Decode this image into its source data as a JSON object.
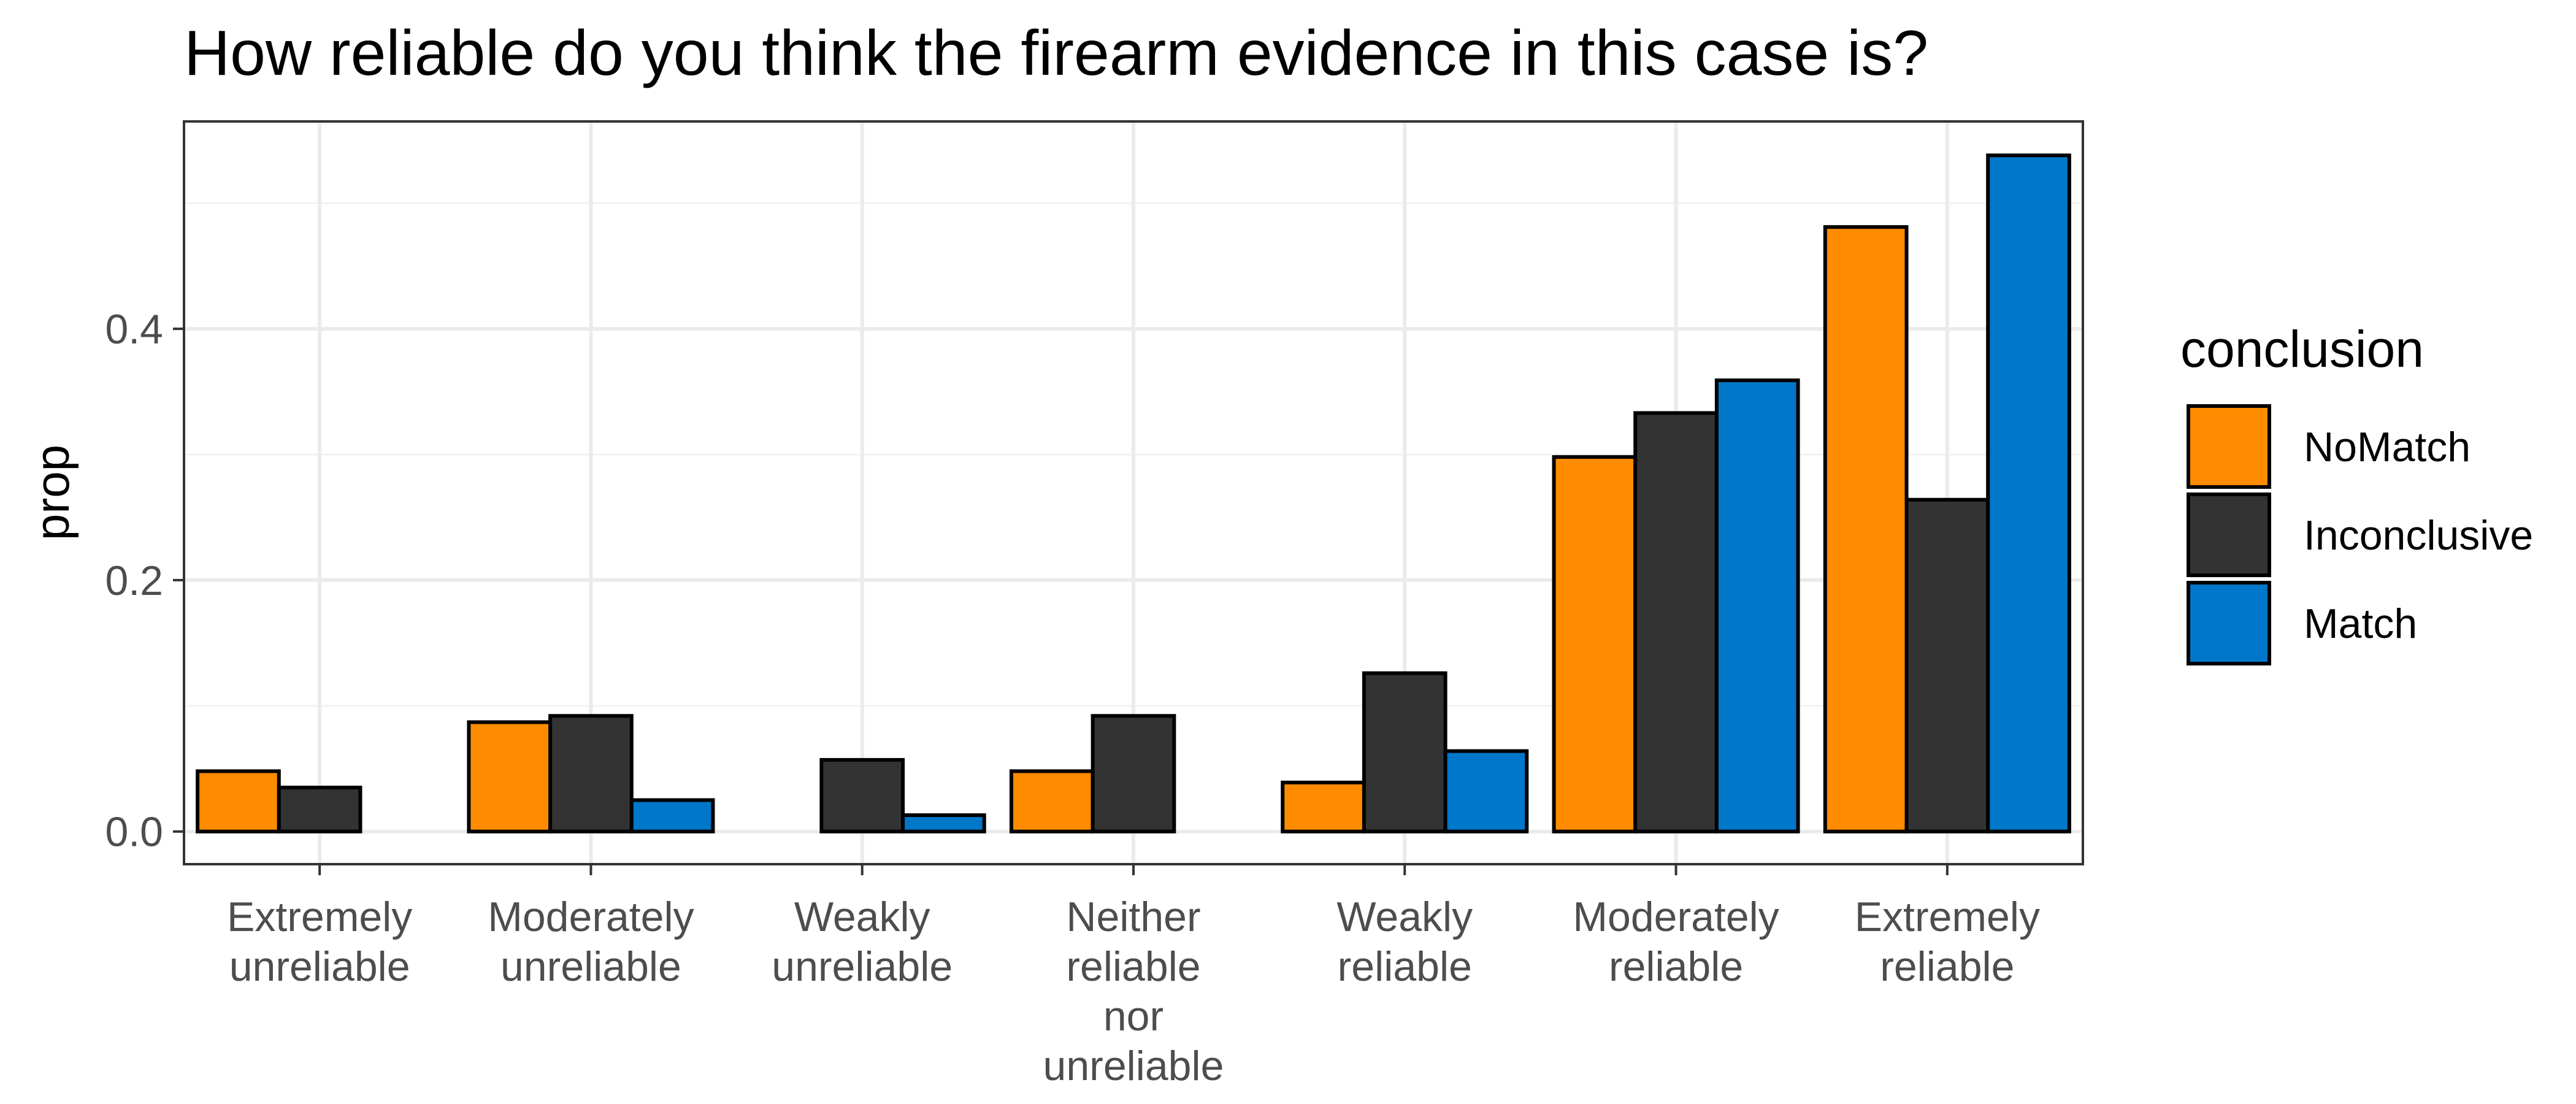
{
  "chart_data": {
    "type": "bar",
    "title": "How reliable do you think the firearm evidence in this case is?",
    "xlabel": "",
    "ylabel": "prop",
    "categories": [
      [
        "Extremely",
        "unreliable"
      ],
      [
        "Moderately",
        "unreliable"
      ],
      [
        "Weakly",
        "unreliable"
      ],
      [
        "Neither",
        "reliable",
        "nor",
        "unreliable"
      ],
      [
        "Weakly",
        "reliable"
      ],
      [
        "Moderately",
        "reliable"
      ],
      [
        "Extremely",
        "reliable"
      ]
    ],
    "series": [
      {
        "name": "NoMatch",
        "color": "#FF8C00",
        "values": [
          0.048,
          0.087,
          0.0,
          0.048,
          0.039,
          0.298,
          0.481
        ]
      },
      {
        "name": "Inconclusive",
        "color": "#333333",
        "values": [
          0.035,
          0.092,
          0.057,
          0.092,
          0.126,
          0.333,
          0.264
        ]
      },
      {
        "name": "Match",
        "color": "#0077C8",
        "values": [
          0.0,
          0.025,
          0.013,
          0.0,
          0.064,
          0.359,
          0.538
        ]
      }
    ],
    "ylim": [
      -0.026,
      0.565
    ],
    "yticks": [
      0.0,
      0.2,
      0.4
    ],
    "ytick_labels": [
      "0.0",
      "0.2",
      "0.4"
    ],
    "grid": true,
    "legend": {
      "title": "conclusion",
      "position": "right"
    }
  }
}
